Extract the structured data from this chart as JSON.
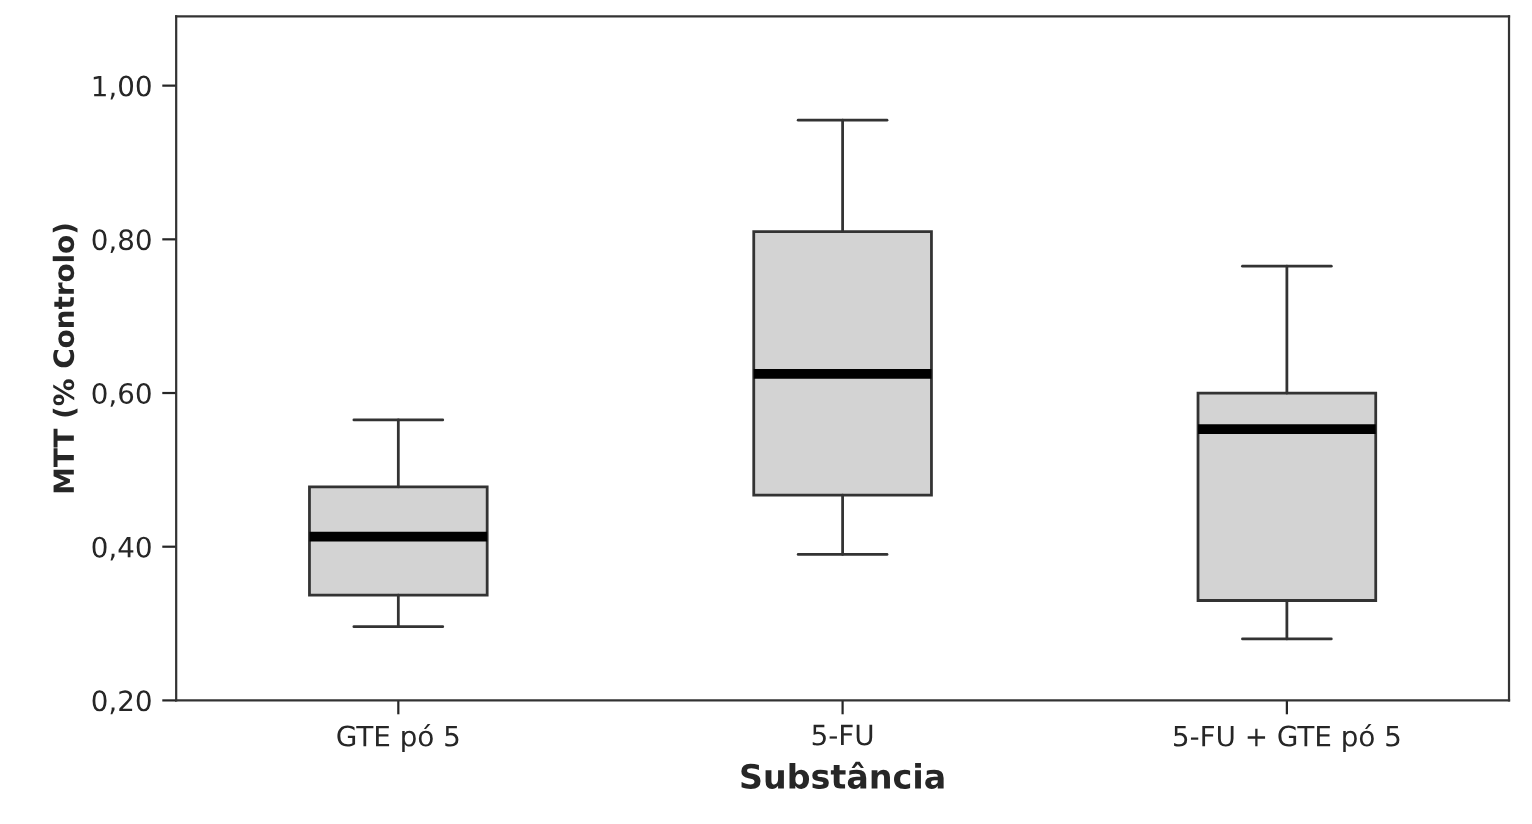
{
  "chart_data": {
    "type": "box",
    "xlabel": "Substância",
    "ylabel": "MTT (% Controlo)",
    "categories": [
      "GTE pó 5",
      "5-FU",
      "5-FU + GTE pó 5"
    ],
    "boxes": [
      {
        "low": 0.296,
        "q1": 0.337,
        "median": 0.413,
        "q3": 0.478,
        "high": 0.565
      },
      {
        "low": 0.39,
        "q1": 0.467,
        "median": 0.625,
        "q3": 0.81,
        "high": 0.955
      },
      {
        "low": 0.28,
        "q1": 0.33,
        "median": 0.553,
        "q3": 0.6,
        "high": 0.765
      }
    ],
    "color": "#d3d3d3",
    "ylim": [
      0.2,
      1.09
    ],
    "yticks": [
      {
        "value": 0.2,
        "label": "0,20"
      },
      {
        "value": 0.4,
        "label": "0,40"
      },
      {
        "value": 0.6,
        "label": "0,60"
      },
      {
        "value": 0.8,
        "label": "0,80"
      },
      {
        "value": 1.0,
        "label": "1,00"
      }
    ],
    "grid": false
  }
}
